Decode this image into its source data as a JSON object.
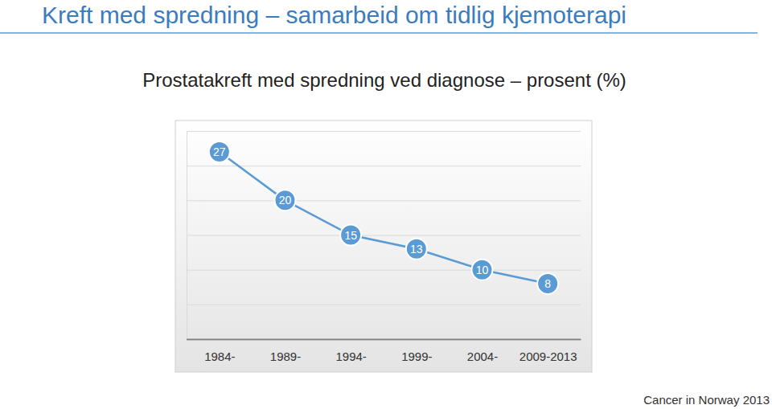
{
  "page_title": "Kreft med spredning – samarbeid om tidlig kjemoterapi",
  "source": "Cancer in Norway 2013",
  "chart_data": {
    "type": "line",
    "title": "Prostatakreft med spredning ved diagnose – prosent (%)",
    "categories": [
      "1984-",
      "1989-",
      "1994-",
      "1999-",
      "2004-",
      "2009-2013"
    ],
    "values": [
      27,
      20,
      15,
      13,
      10,
      8
    ],
    "color": "#5b9bd5",
    "marker": "circle",
    "ylim": [
      0,
      30
    ],
    "yticks": [
      0,
      5,
      10,
      15,
      20,
      25,
      30
    ],
    "grid": true,
    "data_labels": true,
    "tick_labels": "x"
  }
}
